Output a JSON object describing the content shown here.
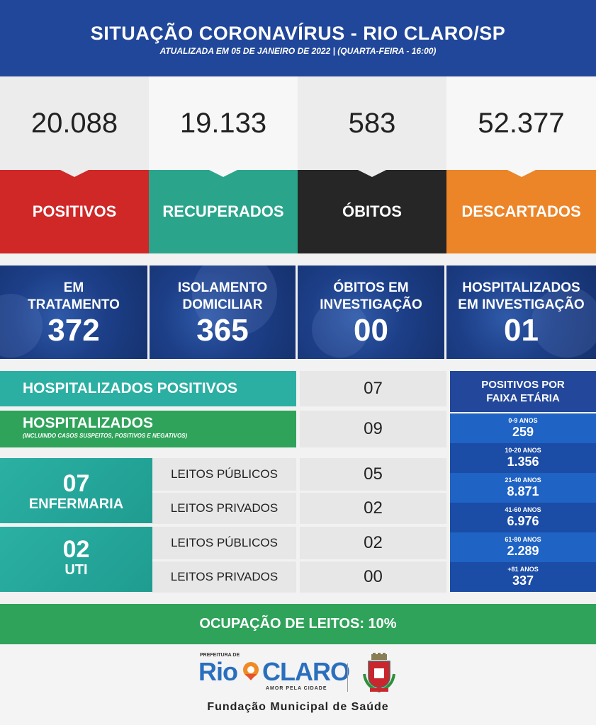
{
  "header": {
    "title": "SITUAÇÃO CORONAVÍRUS - RIO CLARO/SP",
    "subtitle": "ATUALIZADA EM 05 DE JANEIRO DE 2022 | (QUARTA-FEIRA - 16:00)"
  },
  "totals": [
    {
      "value": "20.088",
      "label": "POSITIVOS",
      "color": "#d02727"
    },
    {
      "value": "19.133",
      "label": "RECUPERADOS",
      "color": "#2aa58c"
    },
    {
      "value": "583",
      "label": "ÓBITOS",
      "color": "#262626"
    },
    {
      "value": "52.377",
      "label": "DESCARTADOS",
      "color": "#ec8428"
    }
  ],
  "status": [
    {
      "label1": "EM",
      "label2": "TRATAMENTO",
      "value": "372"
    },
    {
      "label1": "ISOLAMENTO",
      "label2": "DOMICILIAR",
      "value": "365"
    },
    {
      "label1": "ÓBITOS EM",
      "label2": "INVESTIGAÇÃO",
      "value": "00"
    },
    {
      "label1": "HOSPITALIZADOS",
      "label2": "EM INVESTIGAÇÃO",
      "value": "01"
    }
  ],
  "hospital": {
    "positivos_label": "HOSPITALIZADOS POSITIVOS",
    "positivos_value": "07",
    "total_label": "HOSPITALIZADOS",
    "total_note": "(INCLUINDO CASOS SUSPEITOS, POSITIVOS E NEGATIVOS)",
    "total_value": "09"
  },
  "beds": {
    "enfermaria": {
      "count": "07",
      "label": "ENFERMARIA",
      "publicos_label": "LEITOS PÚBLICOS",
      "publicos": "05",
      "privados_label": "LEITOS PRIVADOS",
      "privados": "02"
    },
    "uti": {
      "count": "02",
      "label": "UTI",
      "publicos_label": "LEITOS PÚBLICOS",
      "publicos": "02",
      "privados_label": "LEITOS PRIVADOS",
      "privados": "00"
    }
  },
  "age": {
    "title1": "POSITIVOS POR",
    "title2": "FAIXA ETÁRIA",
    "groups": [
      {
        "range": "0-9 ANOS",
        "value": "259"
      },
      {
        "range": "10-20 ANOS",
        "value": "1.356"
      },
      {
        "range": "21-40 ANOS",
        "value": "8.871"
      },
      {
        "range": "41-60 ANOS",
        "value": "6.976"
      },
      {
        "range": "61-80 ANOS",
        "value": "2.289"
      },
      {
        "range": "+81 ANOS",
        "value": "337"
      }
    ]
  },
  "occupancy": "OCUPAÇÃO DE LEITOS: 10%",
  "footer": {
    "prefeitura": "PREFEITURA DE",
    "rio": "Rio",
    "claro": "CLARO",
    "slogan": "AMOR PELA CIDADE",
    "fundacao": "Fundação Municipal de Saúde"
  }
}
